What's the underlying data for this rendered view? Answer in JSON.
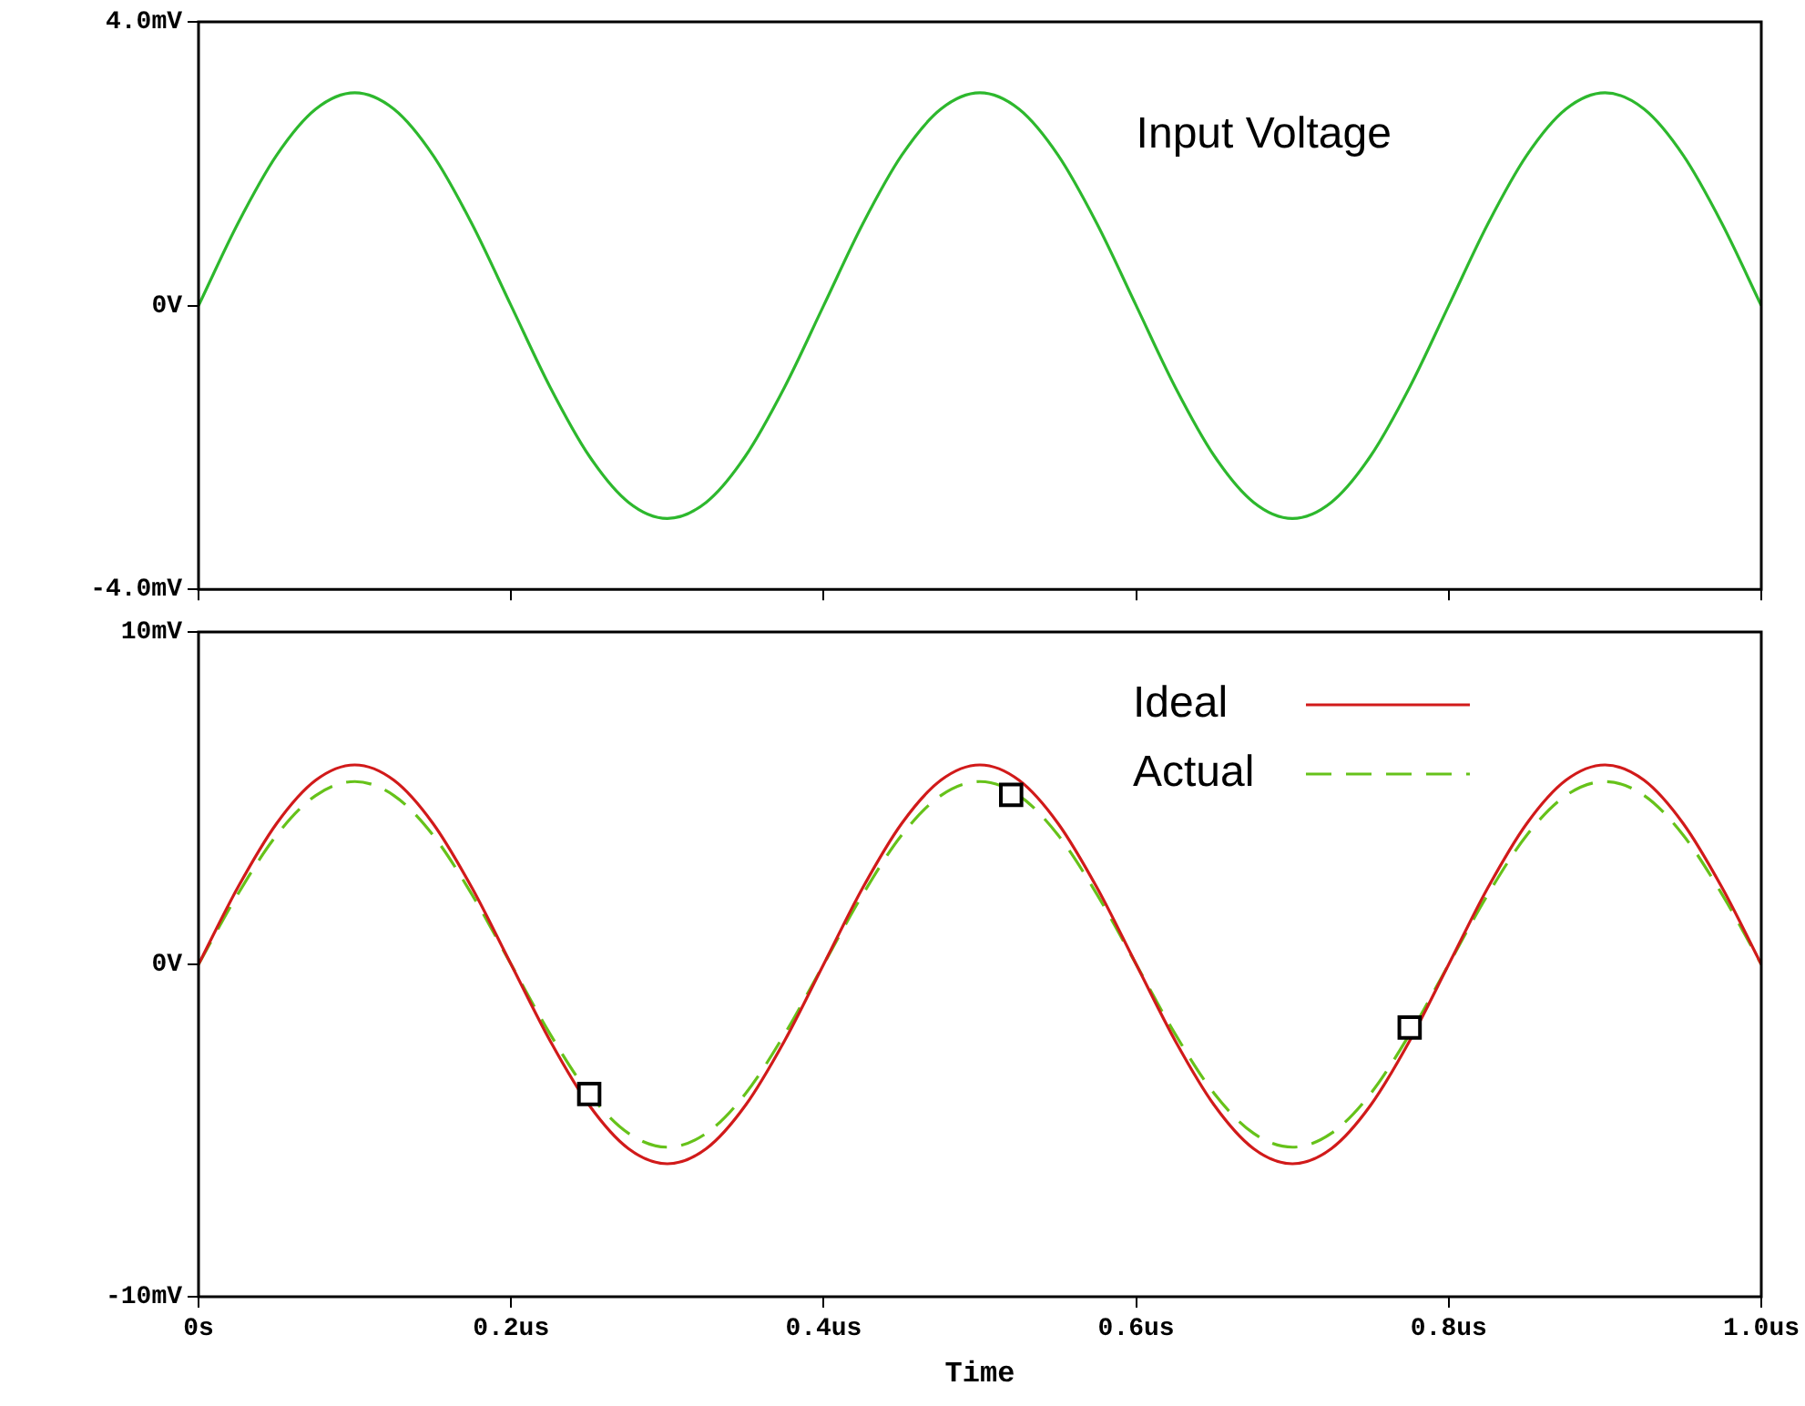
{
  "chart_data": [
    {
      "type": "line",
      "x": [
        0,
        0.025,
        0.05,
        0.075,
        0.1,
        0.125,
        0.15,
        0.175,
        0.2,
        0.225,
        0.25,
        0.275,
        0.3,
        0.325,
        0.35,
        0.375,
        0.4,
        0.425,
        0.45,
        0.475,
        0.5,
        0.525,
        0.55,
        0.575,
        0.6,
        0.625,
        0.65,
        0.675,
        0.7,
        0.725,
        0.75,
        0.775,
        0.8,
        0.825,
        0.85,
        0.875,
        0.9,
        0.925,
        0.95,
        0.975,
        1.0
      ],
      "series": [
        {
          "color": "#2db82d",
          "values": [
            0,
            1.15,
            2.12,
            2.77,
            3,
            2.77,
            2.12,
            1.15,
            0,
            -1.15,
            -2.12,
            -2.77,
            -3,
            -2.77,
            -2.12,
            -1.15,
            0,
            1.15,
            2.12,
            2.77,
            3,
            2.77,
            2.12,
            1.15,
            0,
            -1.15,
            -2.12,
            -2.77,
            -3,
            -2.77,
            -2.12,
            -1.15,
            0,
            1.15,
            2.12,
            2.77,
            3,
            2.77,
            2.12,
            1.15,
            0
          ]
        }
      ],
      "xlim": [
        0,
        1.0
      ],
      "xticks": [
        {
          "value": 0,
          "label": null
        },
        {
          "value": 0.2,
          "label": null
        },
        {
          "value": 0.4,
          "label": null
        },
        {
          "value": 0.6,
          "label": null
        },
        {
          "value": 0.8,
          "label": null
        },
        {
          "value": 1.0,
          "label": null
        }
      ],
      "ylim": [
        -4,
        4
      ],
      "yticks": [
        {
          "value": -4,
          "label": "-4.0mV"
        },
        {
          "value": 0,
          "label": "0V"
        },
        {
          "value": 4,
          "label": "4.0mV"
        }
      ],
      "tick_labels": "y",
      "grid": false,
      "legend": false,
      "line_style": "solid",
      "marker": "none",
      "annotations": [
        "Input Voltage"
      ]
    },
    {
      "type": "line",
      "xlabel": "Time",
      "x": [
        0,
        0.025,
        0.05,
        0.075,
        0.1,
        0.125,
        0.15,
        0.175,
        0.2,
        0.225,
        0.25,
        0.275,
        0.3,
        0.325,
        0.35,
        0.375,
        0.4,
        0.425,
        0.45,
        0.475,
        0.5,
        0.525,
        0.55,
        0.575,
        0.6,
        0.625,
        0.65,
        0.675,
        0.7,
        0.725,
        0.75,
        0.775,
        0.8,
        0.825,
        0.85,
        0.875,
        0.9,
        0.925,
        0.95,
        0.975,
        1.0
      ],
      "series": [
        {
          "name": "Ideal",
          "color": "#d11a1a",
          "line_style": "solid",
          "values": [
            0,
            2.3,
            4.24,
            5.54,
            6,
            5.54,
            4.24,
            2.3,
            0,
            -2.3,
            -4.24,
            -5.54,
            -6,
            -5.54,
            -4.24,
            -2.3,
            0,
            2.3,
            4.24,
            5.54,
            6,
            5.54,
            4.24,
            2.3,
            0,
            -2.3,
            -4.24,
            -5.54,
            -6,
            -5.54,
            -4.24,
            -2.3,
            0,
            2.3,
            4.24,
            5.54,
            6,
            5.54,
            4.24,
            2.3,
            0
          ]
        },
        {
          "name": "Actual",
          "color": "#66c21a",
          "line_style": "dashed",
          "values": [
            0,
            2.1,
            3.89,
            5.08,
            5.5,
            5.08,
            3.89,
            2.1,
            0,
            -2.1,
            -3.89,
            -5.08,
            -5.5,
            -5.08,
            -3.89,
            -2.1,
            0,
            2.1,
            3.89,
            5.08,
            5.5,
            5.08,
            3.89,
            2.1,
            0,
            -2.1,
            -3.89,
            -5.08,
            -5.5,
            -5.08,
            -3.89,
            -2.1,
            0,
            2.1,
            3.89,
            5.08,
            5.5,
            5.08,
            3.89,
            2.1,
            0
          ]
        },
        {
          "type": "scatter",
          "color": "#000000",
          "marker": "square",
          "x": [
            0.25,
            0.52,
            0.775
          ],
          "values": [
            -3.9,
            5.1,
            -1.9
          ]
        }
      ],
      "xlim": [
        0,
        1.0
      ],
      "xticks": [
        {
          "value": 0,
          "label": "0s"
        },
        {
          "value": 0.2,
          "label": "0.2us"
        },
        {
          "value": 0.4,
          "label": "0.4us"
        },
        {
          "value": 0.6,
          "label": "0.6us"
        },
        {
          "value": 0.8,
          "label": "0.8us"
        },
        {
          "value": 1.0,
          "label": "1.0us"
        }
      ],
      "ylim": [
        -10,
        10
      ],
      "yticks": [
        {
          "value": -10,
          "label": "-10mV"
        },
        {
          "value": 0,
          "label": "0V"
        },
        {
          "value": 10,
          "label": "10mV"
        }
      ],
      "grid": false,
      "legend": "top right",
      "line_style": "solid",
      "marker": "none"
    }
  ]
}
